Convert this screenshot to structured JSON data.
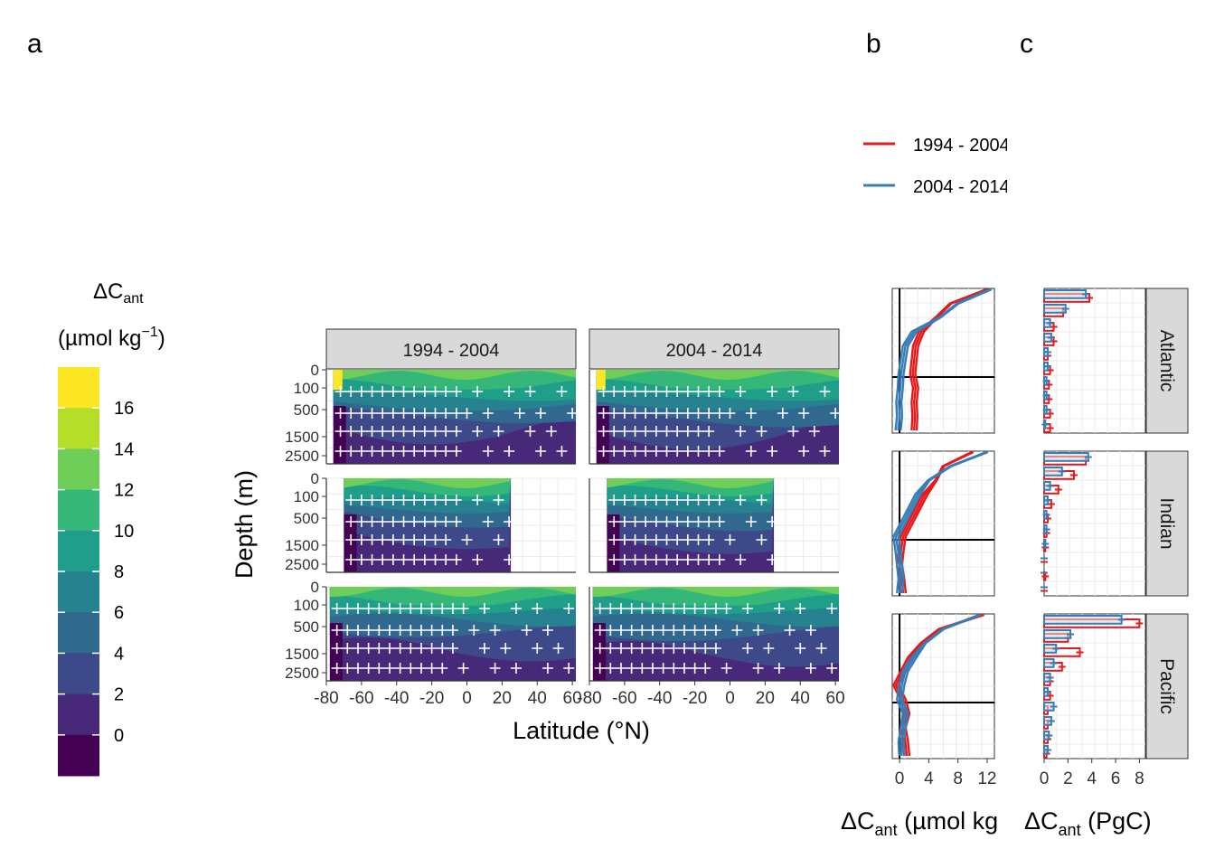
{
  "panel_labels": {
    "a": "a",
    "b": "b",
    "c": "c"
  },
  "colorbar": {
    "title_line1": "ΔC",
    "title_sub": "ant",
    "title_line2": "(µmol kg",
    "title_sup": "−1",
    "title_close": ")",
    "ticks": [
      "16",
      "14",
      "12",
      "10",
      "8",
      "6",
      "4",
      "2",
      "0"
    ],
    "colors": [
      "#fde725",
      "#b5de2b",
      "#6ece58",
      "#35b779",
      "#1f9e89",
      "#26828e",
      "#31688e",
      "#3e4989",
      "#482878",
      "#440154"
    ]
  },
  "legend": {
    "entries": [
      {
        "label": "1994 - 2004",
        "color": "#e41a1c"
      },
      {
        "label": "2004 - 2014",
        "color": "#377eb8"
      }
    ]
  },
  "section_panels": {
    "facet_titles": [
      "1994 - 2004",
      "2004 - 2014"
    ],
    "xlabel": "Latitude (°N)",
    "ylabel": "Depth (m)",
    "x_ticks": [
      "-80",
      "-60",
      "-40",
      "-20",
      "0",
      "20",
      "40",
      "60"
    ],
    "y_ticks": [
      "0",
      "100",
      "500",
      "1500",
      "2500"
    ]
  },
  "profile_panel": {
    "x_ticks": [
      "0",
      "4",
      "8",
      "12"
    ],
    "xlabel_main": "ΔC",
    "xlabel_sub": "ant",
    "xlabel_rest": " (µmol kg"
  },
  "inventory_panel": {
    "x_ticks": [
      "0",
      "2",
      "4",
      "6",
      "8"
    ],
    "xlabel_main": "ΔC",
    "xlabel_sub": "ant",
    "xlabel_rest": " (PgC)"
  },
  "basins": [
    "Atlantic",
    "Indian",
    "Pacific"
  ],
  "chart_data": [
    {
      "type": "heatmap",
      "panel": "a",
      "facets_columns": [
        "1994 - 2004",
        "2004 - 2014"
      ],
      "facets_rows": [
        "Atlantic",
        "Indian",
        "Pacific"
      ],
      "xlabel": "Latitude (°N)",
      "ylabel": "Depth (m)",
      "xlim": [
        -80,
        62
      ],
      "ylim_depth": [
        3000,
        0
      ],
      "colorbar_levels": [
        -2,
        0,
        2,
        4,
        6,
        8,
        10,
        12,
        14,
        16,
        18
      ]
    },
    {
      "type": "line",
      "panel": "b",
      "xlabel": "ΔCant (µmol kg",
      "xlim": [
        -1,
        13
      ],
      "series": [
        {
          "name": "1994 - 2004",
          "basin": "Atlantic",
          "depth": [
            0,
            100,
            200,
            500,
            1000,
            1500,
            2000,
            2500,
            3000,
            4000,
            5000
          ],
          "values": [
            12.0,
            7.0,
            5.0,
            3.0,
            2.2,
            2.0,
            1.8,
            2.2,
            2.0,
            2.1,
            2.0
          ]
        },
        {
          "name": "2004 - 2014",
          "basin": "Atlantic",
          "depth": [
            0,
            100,
            200,
            500,
            1000,
            1500,
            2000,
            2500,
            3000,
            4000,
            5000
          ],
          "values": [
            12.5,
            8.0,
            5.5,
            2.0,
            0.8,
            0.5,
            0.2,
            0.1,
            -0.1,
            0.0,
            -0.2
          ]
        },
        {
          "name": "1994 - 2004",
          "basin": "Indian",
          "depth": [
            0,
            100,
            200,
            500,
            1000,
            1500,
            2000,
            2500,
            3000,
            4000,
            5000
          ],
          "values": [
            10.0,
            6.0,
            5.0,
            3.5,
            2.5,
            1.5,
            0.5,
            0.2,
            0.0,
            0.3,
            0.5
          ]
        },
        {
          "name": "2004 - 2014",
          "basin": "Indian",
          "depth": [
            0,
            100,
            200,
            500,
            1000,
            1500,
            2000,
            2500,
            3000,
            4000,
            5000
          ],
          "values": [
            12.0,
            7.0,
            4.0,
            2.5,
            1.5,
            0.5,
            -0.5,
            -0.2,
            0.0,
            0.2,
            0.0
          ]
        },
        {
          "name": "1994 - 2004",
          "basin": "Pacific",
          "depth": [
            0,
            100,
            200,
            500,
            1000,
            1500,
            2000,
            2500,
            3000,
            4000,
            5000
          ],
          "values": [
            11.5,
            5.5,
            3.0,
            1.5,
            0.5,
            -0.5,
            0.5,
            1.0,
            0.5,
            0.8,
            1.0
          ]
        },
        {
          "name": "2004 - 2014",
          "basin": "Pacific",
          "depth": [
            0,
            100,
            200,
            500,
            1000,
            1500,
            2000,
            2500,
            3000,
            4000,
            5000
          ],
          "values": [
            11.0,
            6.0,
            3.5,
            2.0,
            0.8,
            0.3,
            0.0,
            0.8,
            0.5,
            0.2,
            0.3
          ]
        }
      ]
    },
    {
      "type": "bar",
      "panel": "c",
      "xlabel": "ΔCant (PgC)",
      "xlim": [
        0,
        8.5
      ],
      "series": [
        {
          "name": "1994 - 2004",
          "basin": "Atlantic",
          "values": [
            3.8,
            1.6,
            0.8,
            0.8,
            0.3,
            0.5,
            0.4,
            0.4,
            0.5,
            0.5
          ]
        },
        {
          "name": "2004 - 2014",
          "basin": "Atlantic",
          "values": [
            3.5,
            1.8,
            0.5,
            0.6,
            0.3,
            0.3,
            0.2,
            0.2,
            0.2,
            0.1
          ]
        },
        {
          "name": "1994 - 2004",
          "basin": "Indian",
          "values": [
            3.5,
            2.5,
            1.2,
            0.6,
            0.3,
            0.2,
            0.1,
            0.0,
            0.1,
            0.0
          ]
        },
        {
          "name": "2004 - 2014",
          "basin": "Indian",
          "values": [
            3.7,
            1.5,
            0.5,
            0.3,
            0.2,
            0.2,
            0.1,
            0.0,
            0.0,
            0.0
          ]
        },
        {
          "name": "1994 - 2004",
          "basin": "Pacific",
          "values": [
            8.0,
            2.0,
            3.0,
            1.5,
            0.5,
            0.5,
            0.3,
            0.3,
            0.3,
            0.2
          ]
        },
        {
          "name": "2004 - 2014",
          "basin": "Pacific",
          "values": [
            6.5,
            2.2,
            1.0,
            0.8,
            0.5,
            0.3,
            0.8,
            0.6,
            0.4,
            0.3
          ]
        }
      ]
    }
  ]
}
